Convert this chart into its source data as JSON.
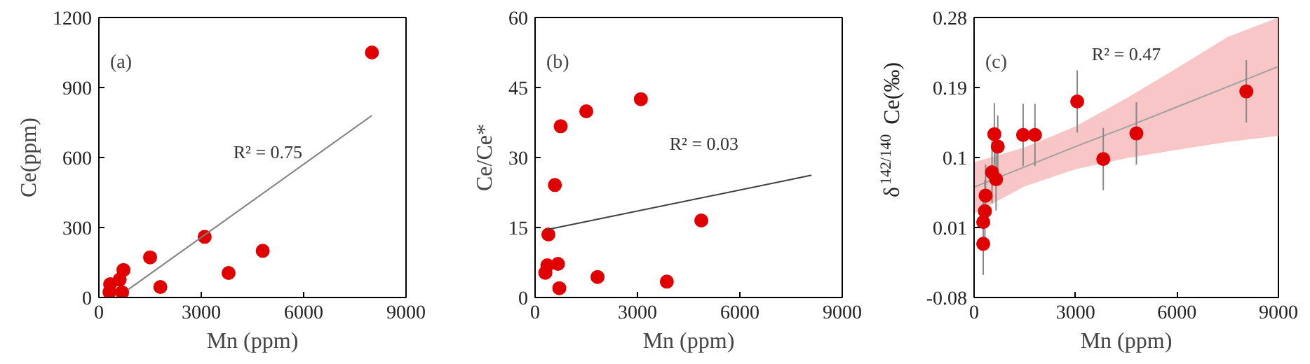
{
  "chart_data": [
    {
      "type": "scatter",
      "title": "(a)",
      "xlabel": "Mn (ppm)",
      "ylabel": "Ce(ppm)",
      "xlim": [
        0,
        9000
      ],
      "xticks": [
        0,
        3000,
        6000,
        9000
      ],
      "ylim": [
        0,
        1200
      ],
      "yticks": [
        0,
        300,
        600,
        900,
        1200
      ],
      "grid": false,
      "marker": "circle",
      "annotations": [
        "R² = 0.75"
      ],
      "series": [
        {
          "color": "#e00000",
          "x": [
            8000,
            3100,
            4800,
            3800,
            1500,
            1800,
            720,
            680,
            610,
            330,
            310
          ],
          "values": [
            1050,
            260,
            200,
            105,
            172,
            45,
            118,
            22,
            77,
            57,
            23
          ]
        },
        {
          "type": "line",
          "marker": "none",
          "color": "#808080",
          "x": [
            860,
            8000
          ],
          "values": [
            34,
            780
          ]
        }
      ]
    },
    {
      "type": "scatter",
      "title": "(b)",
      "xlabel": "Mn (ppm)",
      "ylabel": "Ce/Ce*",
      "xlim": [
        0,
        9000
      ],
      "xticks": [
        0,
        3000,
        6000,
        9000
      ],
      "ylim": [
        0,
        60
      ],
      "yticks": [
        0,
        15,
        30,
        45,
        60
      ],
      "grid": false,
      "marker": "circle",
      "annotations": [
        "R² = 0.03"
      ],
      "series": [
        {
          "color": "#e00000",
          "x": [
            3100,
            1500,
            750,
            580,
            4870,
            390,
            300,
            360,
            670,
            710,
            1830,
            3860
          ],
          "values": [
            42.5,
            39.9,
            36.7,
            24.1,
            16.5,
            13.5,
            5.3,
            6.9,
            7.2,
            2.0,
            4.4,
            3.4
          ]
        },
        {
          "type": "line",
          "marker": "none",
          "color": "#404040",
          "x": [
            330,
            8100
          ],
          "values": [
            14.5,
            26.2
          ]
        }
      ]
    },
    {
      "type": "scatter",
      "title": "(c)",
      "xlabel": "Mn (ppm)",
      "ylabel": "δ$^{142/140}$Ce(‰)",
      "xlim": [
        0,
        9000
      ],
      "xticks": [
        0,
        3000,
        6000,
        9000
      ],
      "ylim": [
        -0.08,
        0.28
      ],
      "yticks": [
        -0.08,
        0.01,
        0.1,
        0.19,
        0.28
      ],
      "grid": false,
      "marker": "circle",
      "annotations": [
        "R² = 0.47"
      ],
      "series": [
        {
          "type": "line",
          "marker": "none",
          "color": "#a0a0a0",
          "x": [
            0,
            1500,
            3000,
            4500,
            6000,
            7500,
            9000
          ],
          "values": [
            0.062,
            0.088,
            0.114,
            0.139,
            0.165,
            0.191,
            0.217
          ],
          "lower": [
            0.028,
            0.063,
            0.085,
            0.099,
            0.11,
            0.12,
            0.128
          ],
          "upper": [
            0.094,
            0.113,
            0.14,
            0.176,
            0.215,
            0.255,
            0.28
          ]
        },
        {
          "color": "#e00000",
          "x": [
            8050,
            4800,
            3820,
            3050,
            1800,
            1450,
            600,
            700,
            530,
            650,
            340,
            320,
            270,
            270
          ],
          "values": [
            0.185,
            0.131,
            0.098,
            0.172,
            0.129,
            0.129,
            0.13,
            0.114,
            0.081,
            0.072,
            0.051,
            0.031,
            0.017,
            -0.011
          ],
          "errors": [
            0.04,
            0.04,
            0.04,
            0.04,
            0.04,
            0.04,
            0.04,
            0.04,
            0.04,
            0.04,
            0.04,
            0.04,
            0.04,
            0.04
          ]
        }
      ]
    }
  ]
}
